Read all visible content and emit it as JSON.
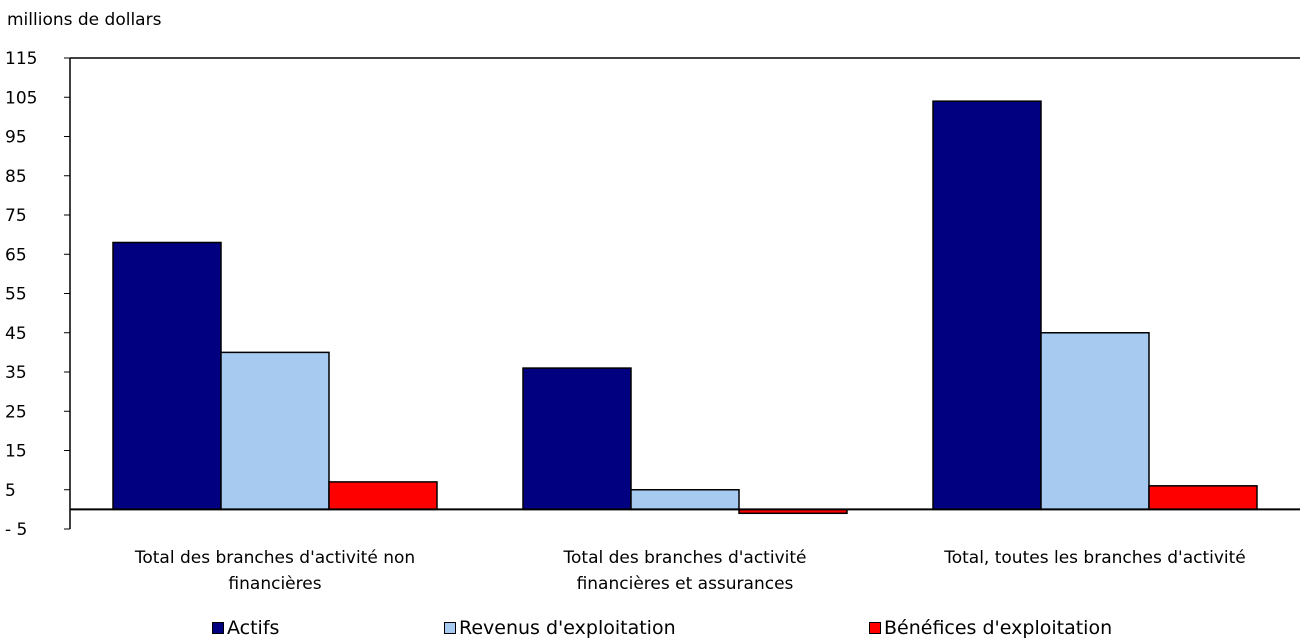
{
  "chart_data": {
    "type": "bar",
    "ylabel": "millions de dollars",
    "categories": [
      [
        "Total des branches d'activité non",
        "financières"
      ],
      [
        "Total des branches d'activité",
        "financières et assurances"
      ],
      [
        "Total, toutes les branches d'activité"
      ]
    ],
    "series": [
      {
        "name": "Actifs",
        "color": "#000080",
        "values": [
          68,
          36,
          104
        ]
      },
      {
        "name": "Revenus d'exploitation",
        "color": "#a6caf0",
        "values": [
          40,
          5,
          45
        ]
      },
      {
        "name": "Bénéfices d'exploitation",
        "color": "#ff0000",
        "values": [
          7,
          -1,
          6
        ]
      }
    ],
    "ylim": [
      -5,
      115
    ],
    "yticks": [
      115,
      105,
      95,
      85,
      75,
      65,
      55,
      45,
      35,
      25,
      15,
      5,
      -5
    ],
    "ytick_labels": [
      "115",
      "105",
      "95",
      "85",
      "75",
      "65",
      "55",
      "45",
      "35",
      "25",
      "15",
      "5",
      "- 5"
    ],
    "legend_position": "bottom",
    "grid": false
  }
}
